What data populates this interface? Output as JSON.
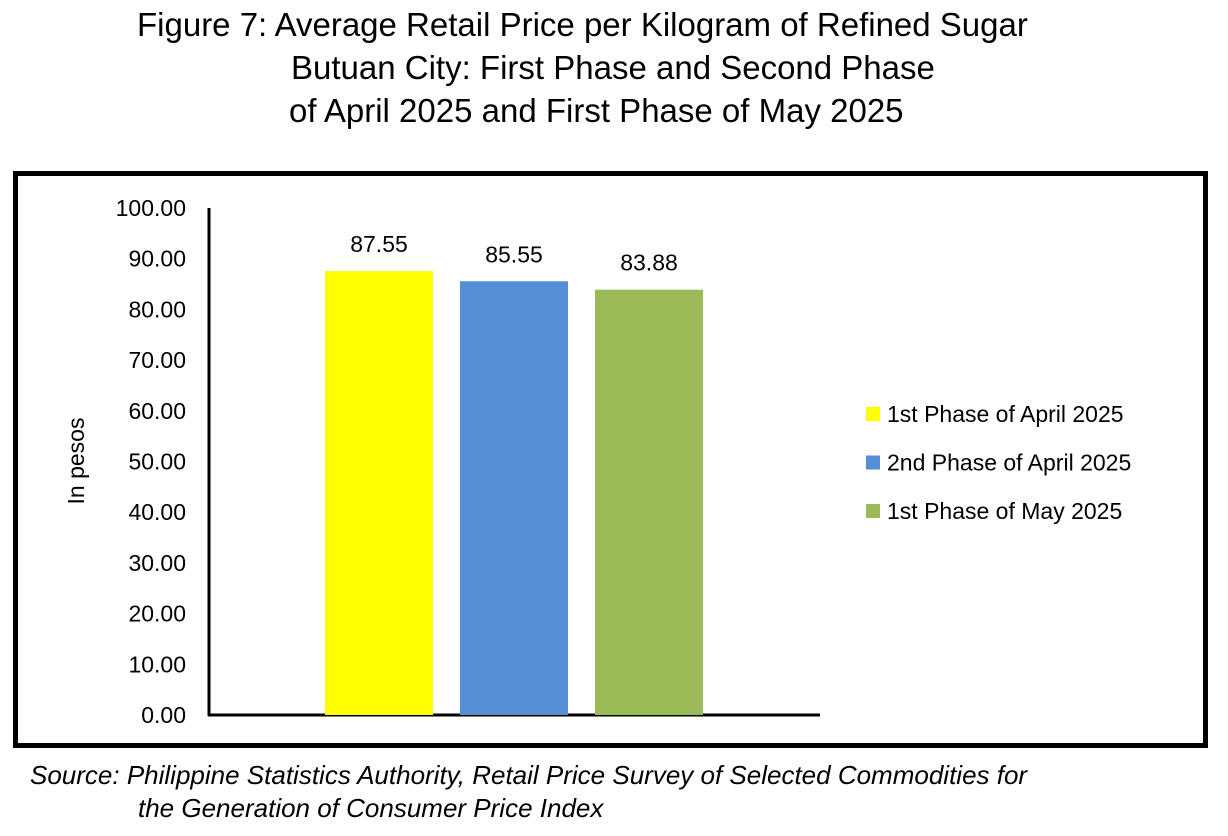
{
  "title": {
    "line1": "Figure 7: Average Retail Price per Kilogram of Refined Sugar",
    "line2": "Butuan City: First Phase and Second Phase",
    "line3": "of April 2025 and First Phase of May 2025"
  },
  "source": {
    "line1": "Source: Philippine Statistics Authority, Retail Price Survey of Selected Commodities for",
    "line2": "the Generation of Consumer Price Index"
  },
  "chart_data": {
    "type": "bar",
    "title": "Figure 7: Average Retail Price per Kilogram of Refined Sugar Butuan City: First Phase and Second Phase of April 2025 and First Phase of May 2025",
    "ylabel": "In pesos",
    "xlabel": "",
    "ylim": [
      0,
      100
    ],
    "yticks": [
      "0.00",
      "10.00",
      "20.00",
      "30.00",
      "40.00",
      "50.00",
      "60.00",
      "70.00",
      "80.00",
      "90.00",
      "100.00"
    ],
    "grid": false,
    "legend_position": "right",
    "series": [
      {
        "name": "1st Phase of April 2025",
        "value": 87.55,
        "label": "87.55",
        "color": "#FFFF00"
      },
      {
        "name": "2nd Phase of April 2025",
        "value": 85.55,
        "label": "85.55",
        "color": "#558ED5"
      },
      {
        "name": "1st Phase of May 2025",
        "value": 83.88,
        "label": "83.88",
        "color": "#9BBB59"
      }
    ]
  }
}
